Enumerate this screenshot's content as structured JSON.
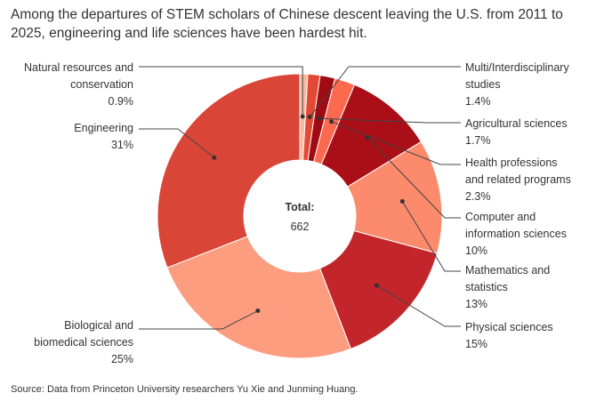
{
  "chart_data": {
    "type": "pie",
    "title": "Among the departures of STEM scholars of Chinese descent leaving the U.S. from 2011 to 2025, engineering and life sciences have been hardest hit.",
    "source": "Source: Data from Princeton University researchers Yu Xie and Junming Huang.",
    "center_label": "Total:",
    "center_value": "662",
    "slices": [
      {
        "label": "Natural resources and conservation",
        "value": 0.9,
        "display": "0.9%",
        "color": "#f9b8a2"
      },
      {
        "label": "Multi/Interdisciplinary studies",
        "value": 1.4,
        "display": "1.4%",
        "color": "#e34a36"
      },
      {
        "label": "Agricultural sciences",
        "value": 1.7,
        "display": "1.7%",
        "color": "#a00a12"
      },
      {
        "label": "Health professions and related programs",
        "value": 2.3,
        "display": "2.3%",
        "color": "#fb6a4f"
      },
      {
        "label": "Computer and information sciences",
        "value": 10,
        "display": "10%",
        "color": "#aa0f18"
      },
      {
        "label": "Mathematics and statistics",
        "value": 13,
        "display": "13%",
        "color": "#fc8a6c"
      },
      {
        "label": "Physical sciences",
        "value": 15,
        "display": "15%",
        "color": "#c2262b"
      },
      {
        "label": "Biological and biomedical sciences",
        "value": 25,
        "display": "25%",
        "color": "#fc9d80"
      },
      {
        "label": "Engineering",
        "value": 31,
        "display": "31%",
        "color": "#d94536"
      }
    ]
  }
}
